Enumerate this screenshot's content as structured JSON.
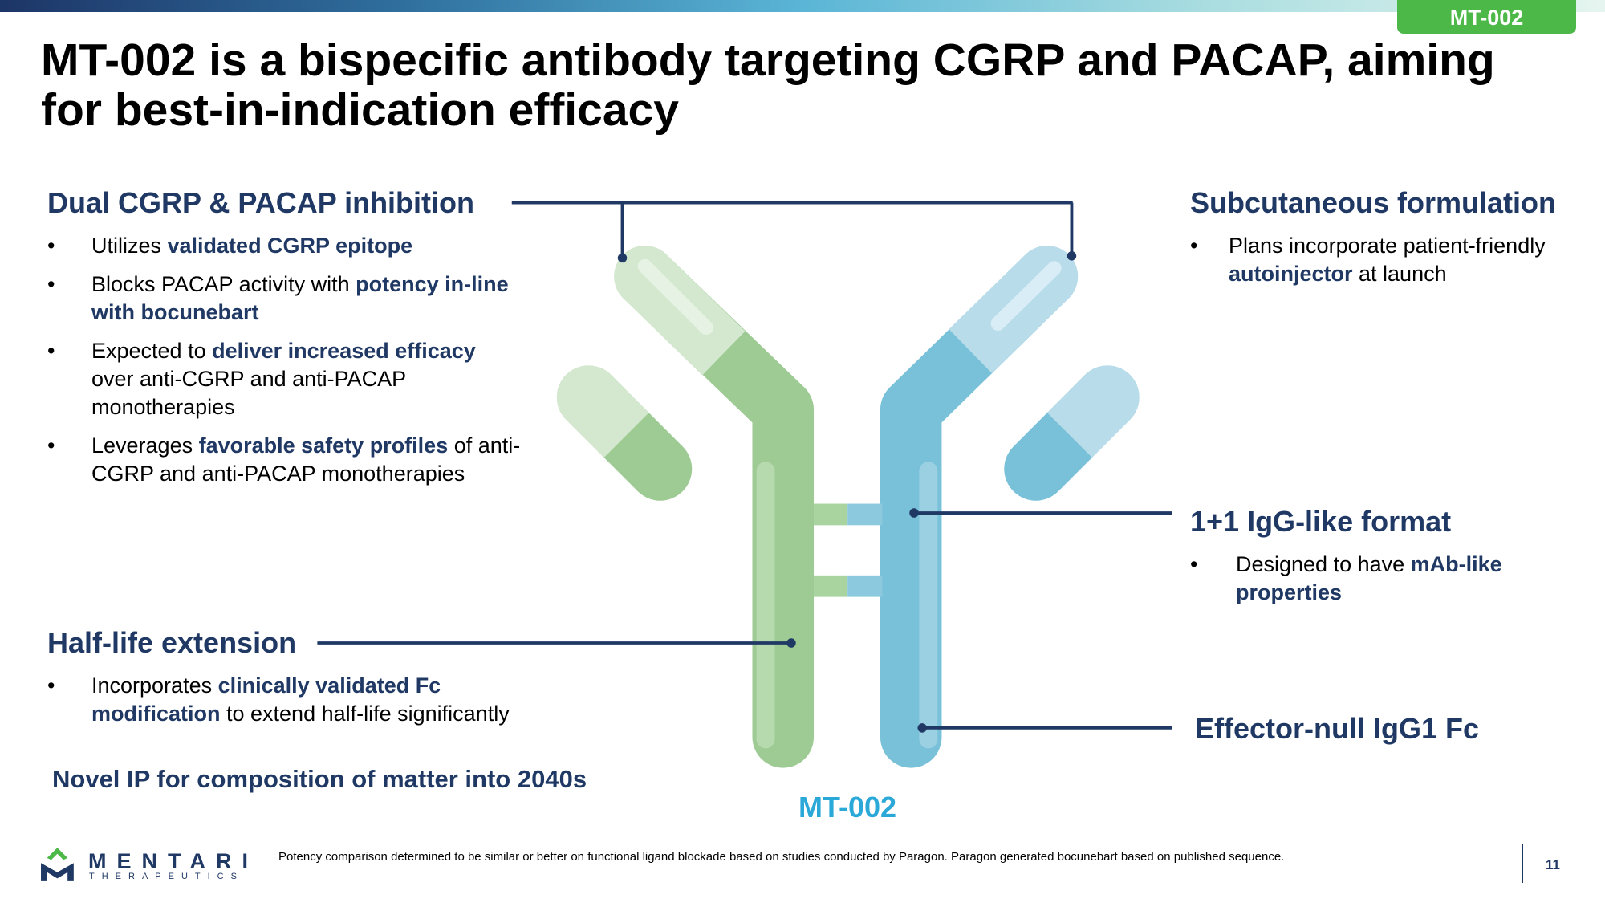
{
  "tag": "MT-002",
  "title": "MT-002 is a bispecific antibody targeting CGRP and PACAP, aiming for best-in-indication efficacy",
  "sections": [
    {
      "heading": "Dual CGRP & PACAP inhibition",
      "bullets": [
        {
          "runs": [
            {
              "text": "Utilizes "
            },
            {
              "text": "validated CGRP epitope",
              "emphasis": true
            }
          ]
        },
        {
          "runs": [
            {
              "text": "Blocks PACAP activity with "
            },
            {
              "text": "potency in-line with bocunebart",
              "emphasis": true
            }
          ]
        },
        {
          "runs": [
            {
              "text": "Expected to "
            },
            {
              "text": "deliver increased efficacy",
              "emphasis": true
            },
            {
              "text": " over anti-CGRP and anti-PACAP monotherapies"
            }
          ]
        },
        {
          "runs": [
            {
              "text": "Leverages "
            },
            {
              "text": "favorable safety profiles",
              "emphasis": true
            },
            {
              "text": " of anti-CGRP and anti-PACAP monotherapies"
            }
          ]
        }
      ]
    },
    {
      "heading": "Half-life extension",
      "bullets": [
        {
          "runs": [
            {
              "text": "Incorporates "
            },
            {
              "text": "clinically validated Fc modification",
              "emphasis": true
            },
            {
              "text": " to extend half-life significantly"
            }
          ]
        }
      ]
    },
    {
      "heading": "Subcutaneous formulation",
      "bullets": [
        {
          "runs": [
            {
              "text": "Plans incorporate patient-friendly "
            },
            {
              "text": "autoinjector",
              "emphasis": true
            },
            {
              "text": " at launch"
            }
          ]
        }
      ]
    },
    {
      "heading": "1+1 IgG-like format",
      "bullets": [
        {
          "runs": [
            {
              "text": "Designed to have "
            },
            {
              "text": "mAb-like properties",
              "emphasis": true
            }
          ]
        }
      ]
    },
    {
      "heading": "Effector-null IgG1 Fc"
    }
  ],
  "ip_note": "Novel IP for composition of matter into 2040s",
  "diagram_label": "MT-002",
  "footer": {
    "logo": {
      "name": "MENTARI",
      "tagline": "THERAPEUTICS"
    },
    "footnote": "Potency comparison determined to be similar or better on functional ligand blockade based on studies conducted by Paragon. Paragon generated bocunebart based on published sequence.",
    "page": "11"
  }
}
